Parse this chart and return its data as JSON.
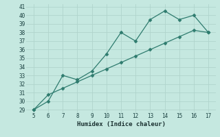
{
  "x": [
    5,
    6,
    7,
    8,
    9,
    10,
    11,
    12,
    13,
    14,
    15,
    16,
    17
  ],
  "y_zigzag": [
    29,
    30,
    33,
    32.5,
    33.5,
    35.5,
    38,
    37,
    39.5,
    40.5,
    39.5,
    40,
    38
  ],
  "y_trend": [
    29,
    30.75,
    31.5,
    32.25,
    33.0,
    33.75,
    34.5,
    35.25,
    36.0,
    36.75,
    37.5,
    38.25,
    38
  ],
  "xlabel": "Humidex (Indice chaleur)",
  "ylim": [
    29,
    41
  ],
  "xlim": [
    5,
    17
  ],
  "yticks": [
    29,
    30,
    31,
    32,
    33,
    34,
    35,
    36,
    37,
    38,
    39,
    40,
    41
  ],
  "xticks": [
    5,
    6,
    7,
    8,
    9,
    10,
    11,
    12,
    13,
    14,
    15,
    16,
    17
  ],
  "line_color": "#2e7b6e",
  "bg_color": "#c5e8e0",
  "grid_color": "#b0d4cc"
}
